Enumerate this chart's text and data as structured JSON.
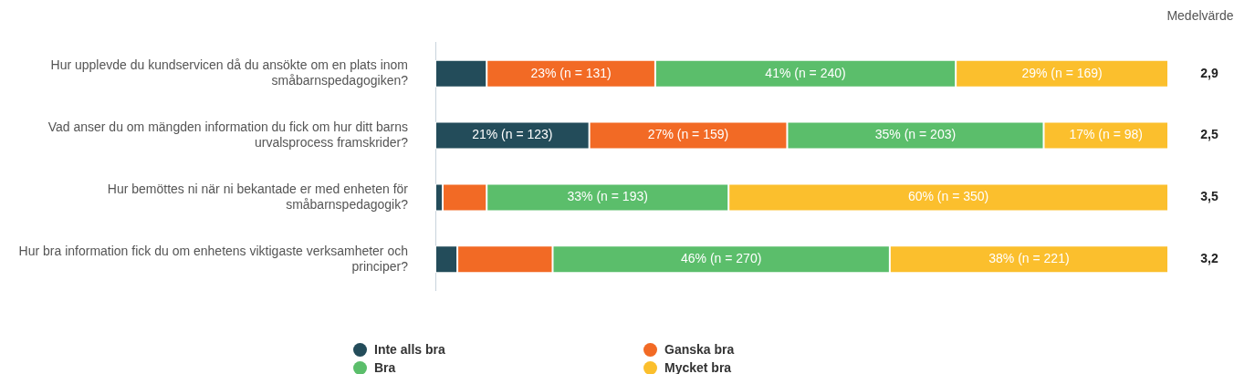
{
  "chart_data": {
    "type": "bar",
    "orientation": "horizontal",
    "stacked": true,
    "categories": [
      "Hur upplevde du kundservicen då du ansökte om en plats inom småbarnspedagogiken?",
      "Vad anser du om mängden information du fick om hur ditt barns urvalsprocess framskrider?",
      "Hur bemöttes ni när ni bekantade er med enheten för småbarnspedagogik?",
      "Hur bra information fick du om enhetens viktigaste verksamheter och principer?"
    ],
    "series": [
      {
        "name": "Inte alls bra",
        "color": "#234c5a",
        "values": [
          7,
          21,
          1,
          3
        ],
        "value_labels": [
          null,
          "21% (n = 123)",
          null,
          null
        ]
      },
      {
        "name": "Ganska bra",
        "color": "#f26a25",
        "values": [
          23,
          27,
          6,
          13
        ],
        "value_labels": [
          "23% (n = 131)",
          "27% (n = 159)",
          null,
          null
        ]
      },
      {
        "name": "Bra",
        "color": "#5bbe6b",
        "values": [
          41,
          35,
          33,
          46
        ],
        "value_labels": [
          "41% (n = 240)",
          "35% (n = 203)",
          "33% (n = 193)",
          "46% (n = 270)"
        ]
      },
      {
        "name": "Mycket bra",
        "color": "#fbbf2d",
        "values": [
          29,
          17,
          60,
          38
        ],
        "value_labels": [
          "29% (n = 169)",
          "17% (n = 98)",
          "60% (n = 350)",
          "38% (n = 221)"
        ]
      }
    ],
    "xlim": [
      0,
      100
    ],
    "tick_labels": "y",
    "grid": false,
    "legend": "bottom",
    "annotations": [
      "Medelvärde",
      "2,9",
      "2,5",
      "3,5",
      "3,2"
    ]
  }
}
